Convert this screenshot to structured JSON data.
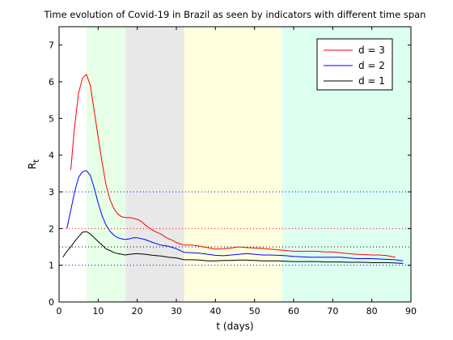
{
  "chart_data": {
    "type": "line",
    "title": "Time evolution of Covid-19 in Brazil as seen by indicators with different time span",
    "xlabel": "t (days)",
    "ylabel_main": "R",
    "ylabel_sub": "t",
    "xlim": [
      0,
      90
    ],
    "ylim": [
      0,
      7.5
    ],
    "xticks": [
      0,
      10,
      20,
      30,
      40,
      50,
      60,
      70,
      80,
      90
    ],
    "yticks": [
      0,
      1,
      2,
      3,
      4,
      5,
      6,
      7
    ],
    "legend_position": "top-right",
    "shaded_regions": [
      {
        "x0": 7,
        "x1": 17,
        "color": "#e6ffe6"
      },
      {
        "x0": 17,
        "x1": 32,
        "color": "#e8e8e8"
      },
      {
        "x0": 32,
        "x1": 57,
        "color": "#ffffe0"
      },
      {
        "x0": 57,
        "x1": 90,
        "color": "#dcfff0"
      }
    ],
    "reference_lines": [
      {
        "y": 1,
        "color": "#0000ff"
      },
      {
        "y": 1.5,
        "color": "#000000"
      },
      {
        "y": 2,
        "color": "#ff0000"
      },
      {
        "y": 3,
        "color": "#0000ff"
      }
    ],
    "series": [
      {
        "name": "d = 3",
        "color": "#ff0000",
        "x": [
          3,
          4,
          5,
          6,
          7,
          8,
          9,
          10,
          11,
          12,
          13,
          14,
          15,
          16,
          17,
          18,
          19,
          20,
          21,
          22,
          23,
          24,
          25,
          26,
          27,
          28,
          29,
          30,
          31,
          32,
          34,
          36,
          38,
          40,
          42,
          44,
          46,
          48,
          50,
          52,
          54,
          56,
          58,
          60,
          62,
          64,
          66,
          68,
          70,
          72,
          74,
          76,
          78,
          80,
          82,
          84,
          86
        ],
        "y": [
          3.6,
          4.8,
          5.7,
          6.1,
          6.2,
          5.9,
          5.2,
          4.5,
          3.8,
          3.2,
          2.8,
          2.55,
          2.4,
          2.32,
          2.3,
          2.3,
          2.28,
          2.25,
          2.2,
          2.1,
          2.02,
          1.95,
          1.9,
          1.85,
          1.78,
          1.72,
          1.68,
          1.62,
          1.58,
          1.55,
          1.55,
          1.52,
          1.48,
          1.44,
          1.45,
          1.47,
          1.5,
          1.48,
          1.47,
          1.46,
          1.44,
          1.42,
          1.4,
          1.38,
          1.38,
          1.38,
          1.38,
          1.36,
          1.36,
          1.34,
          1.32,
          1.3,
          1.29,
          1.28,
          1.28,
          1.26,
          1.22
        ]
      },
      {
        "name": "d = 2",
        "color": "#0000ff",
        "x": [
          2,
          3,
          4,
          5,
          6,
          7,
          8,
          9,
          10,
          11,
          12,
          13,
          14,
          15,
          16,
          17,
          18,
          19,
          20,
          22,
          24,
          26,
          28,
          30,
          32,
          34,
          36,
          38,
          40,
          42,
          44,
          46,
          48,
          50,
          52,
          54,
          56,
          58,
          60,
          62,
          64,
          66,
          68,
          70,
          72,
          74,
          76,
          78,
          80,
          82,
          84,
          86,
          88
        ],
        "y": [
          2.0,
          2.5,
          3.0,
          3.4,
          3.55,
          3.58,
          3.45,
          3.1,
          2.7,
          2.35,
          2.1,
          1.93,
          1.82,
          1.75,
          1.72,
          1.7,
          1.72,
          1.75,
          1.75,
          1.7,
          1.62,
          1.55,
          1.52,
          1.45,
          1.35,
          1.34,
          1.33,
          1.3,
          1.27,
          1.26,
          1.28,
          1.3,
          1.32,
          1.3,
          1.28,
          1.28,
          1.27,
          1.26,
          1.24,
          1.23,
          1.22,
          1.22,
          1.22,
          1.22,
          1.22,
          1.2,
          1.18,
          1.18,
          1.18,
          1.17,
          1.16,
          1.15,
          1.12
        ]
      },
      {
        "name": "d = 1",
        "color": "#000000",
        "x": [
          1,
          2,
          3,
          4,
          5,
          6,
          7,
          8,
          9,
          10,
          11,
          12,
          13,
          14,
          15,
          16,
          17,
          18,
          20,
          22,
          24,
          26,
          28,
          30,
          32,
          34,
          36,
          38,
          40,
          42,
          44,
          46,
          48,
          50,
          52,
          54,
          56,
          58,
          60,
          62,
          64,
          66,
          68,
          70,
          72,
          74,
          76,
          78,
          80,
          82,
          84,
          86,
          88
        ],
        "y": [
          1.22,
          1.38,
          1.5,
          1.65,
          1.78,
          1.9,
          1.92,
          1.85,
          1.75,
          1.65,
          1.55,
          1.45,
          1.4,
          1.35,
          1.32,
          1.3,
          1.28,
          1.3,
          1.32,
          1.3,
          1.27,
          1.25,
          1.22,
          1.2,
          1.15,
          1.15,
          1.14,
          1.12,
          1.12,
          1.13,
          1.13,
          1.14,
          1.14,
          1.13,
          1.12,
          1.12,
          1.12,
          1.11,
          1.1,
          1.1,
          1.1,
          1.1,
          1.09,
          1.09,
          1.09,
          1.08,
          1.08,
          1.08,
          1.07,
          1.07,
          1.07,
          1.06,
          1.05
        ]
      }
    ]
  }
}
